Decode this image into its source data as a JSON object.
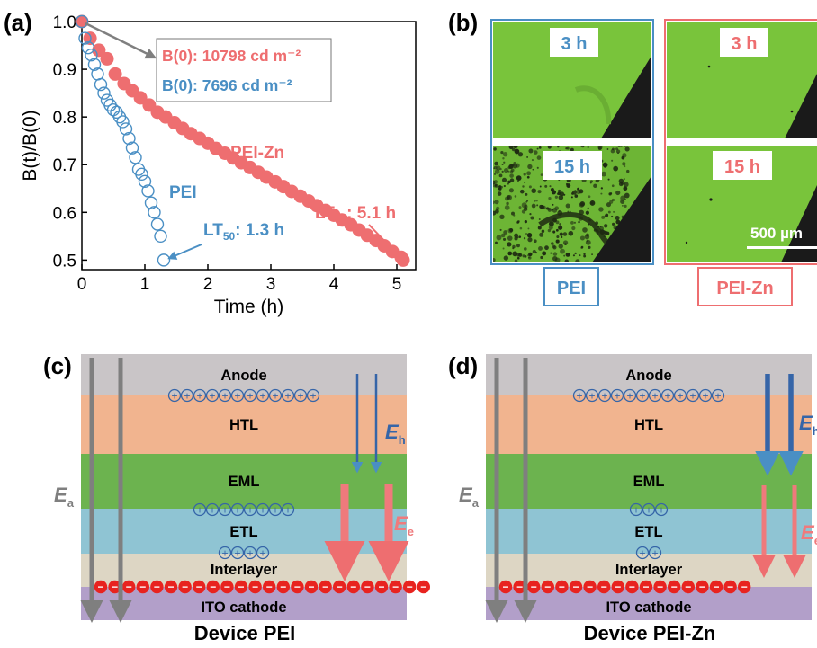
{
  "panels": {
    "a": {
      "letter": "(a)"
    },
    "b": {
      "letter": "(b)"
    },
    "c": {
      "letter": "(c)"
    },
    "d": {
      "letter": "(d)"
    }
  },
  "colors": {
    "pei": "#4a8fc4",
    "pei_zn": "#ee6e70",
    "arrow_gray": "#7f7f7f",
    "anode": "#c9c5c7",
    "htl": "#f1b48f",
    "eml": "#6cb34f",
    "etl": "#8fc4d3",
    "interlayer": "#ddd6c4",
    "cathode": "#b29fc9",
    "field_h": "#3565a8",
    "field_e": "#ef7a7c",
    "microscope_green": "#77c43a"
  },
  "chart_data": {
    "type": "scatter",
    "xlabel": "Time (h)",
    "ylabel": "B(t)/B(0)",
    "xlim": [
      0,
      5.3
    ],
    "ylim": [
      0.48,
      1.0
    ],
    "xticks": [
      "0",
      "1",
      "2",
      "3",
      "4",
      "5"
    ],
    "yticks": [
      "0.5",
      "0.6",
      "0.7",
      "0.8",
      "0.9",
      "1.0"
    ],
    "grid": false,
    "series": [
      {
        "name": "PEI-Zn",
        "marker": "filled-circle",
        "x": [
          0,
          0.13,
          0.27,
          0.4,
          0.53,
          0.67,
          0.8,
          0.93,
          1.07,
          1.2,
          1.33,
          1.47,
          1.6,
          1.73,
          1.87,
          2.0,
          2.13,
          2.27,
          2.4,
          2.53,
          2.67,
          2.8,
          2.93,
          3.07,
          3.2,
          3.33,
          3.47,
          3.6,
          3.73,
          3.87,
          4.0,
          4.13,
          4.27,
          4.4,
          4.53,
          4.67,
          4.8,
          4.93,
          5.07,
          5.1
        ],
        "y": [
          1.0,
          0.965,
          0.94,
          0.922,
          0.89,
          0.87,
          0.855,
          0.84,
          0.825,
          0.81,
          0.8,
          0.788,
          0.776,
          0.765,
          0.755,
          0.745,
          0.734,
          0.724,
          0.714,
          0.704,
          0.694,
          0.684,
          0.674,
          0.664,
          0.654,
          0.644,
          0.634,
          0.624,
          0.614,
          0.604,
          0.594,
          0.584,
          0.574,
          0.563,
          0.552,
          0.541,
          0.53,
          0.518,
          0.506,
          0.5
        ]
      },
      {
        "name": "PEI",
        "marker": "open-circle",
        "x": [
          0,
          0.05,
          0.1,
          0.15,
          0.2,
          0.25,
          0.3,
          0.35,
          0.4,
          0.45,
          0.5,
          0.55,
          0.6,
          0.65,
          0.7,
          0.75,
          0.8,
          0.85,
          0.9,
          0.95,
          1.0,
          1.05,
          1.1,
          1.15,
          1.2,
          1.25,
          1.3
        ],
        "y": [
          1.0,
          0.965,
          0.945,
          0.93,
          0.91,
          0.89,
          0.868,
          0.85,
          0.835,
          0.825,
          0.815,
          0.81,
          0.8,
          0.79,
          0.775,
          0.755,
          0.735,
          0.715,
          0.69,
          0.68,
          0.665,
          0.645,
          0.62,
          0.6,
          0.575,
          0.55,
          0.5
        ]
      }
    ],
    "annotations": {
      "pei_zn_b0": "B(0): 10798 cd m⁻²",
      "pei_b0": "B(0): 7696 cd m⁻²",
      "pei_zn_label": "PEI-Zn",
      "pei_label": "PEI",
      "lt_pei_zn_prefix": "LT",
      "lt_pei_zn_sub": "50",
      "lt_pei_zn_value": ": 5.1 h",
      "lt_pei_prefix": "LT",
      "lt_pei_sub": "50",
      "lt_pei_value": ": 1.3 h"
    }
  },
  "micrographs": {
    "time_3": "3 h",
    "time_15": "15 h",
    "scale_bar": "500 µm",
    "label_pei": "PEI",
    "label_pei_zn": "PEI-Zn"
  },
  "devices": {
    "layers": {
      "anode": "Anode",
      "htl": "HTL",
      "eml": "EML",
      "etl": "ETL",
      "interlayer": "Interlayer",
      "cathode": "ITO cathode"
    },
    "field_a": {
      "letter": "E",
      "sub": "a"
    },
    "field_h": {
      "letter": "E",
      "sub": "h"
    },
    "field_e": {
      "letter": "E",
      "sub": "e"
    },
    "hole_symbol": "+",
    "electron_symbol": "−",
    "device_pei": {
      "caption": "Device PEI",
      "holes_htl": 12,
      "holes_eml_etl": 8,
      "holes_interlayer": 4,
      "electrons": 24
    },
    "device_pei_zn": {
      "caption": "Device PEI-Zn",
      "holes_htl": 12,
      "holes_eml_etl": 3,
      "holes_interlayer": 2,
      "electrons": 18
    }
  }
}
